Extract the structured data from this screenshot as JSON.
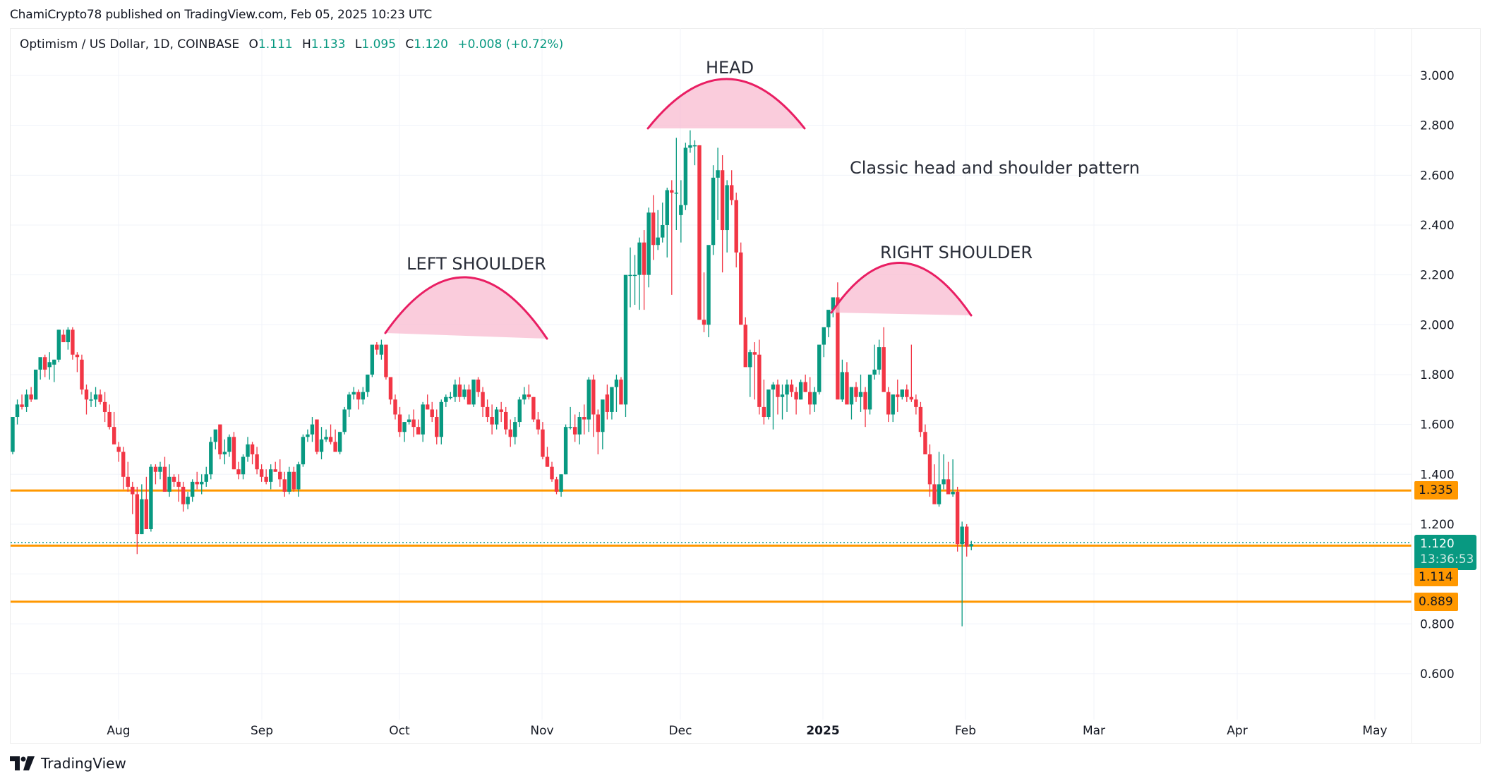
{
  "publish_line": "ChamiCrypto78 published on TradingView.com, Feb 05, 2025 10:23 UTC",
  "legend": {
    "symbol": "Optimism / US Dollar, 1D, COINBASE",
    "open_label": "O",
    "open": "1.111",
    "high_label": "H",
    "high": "1.133",
    "low_label": "L",
    "low": "1.095",
    "close_label": "C",
    "close": "1.120",
    "change": "+0.008 (+0.72%)"
  },
  "price_axis": {
    "ticks": [
      "3.000",
      "2.800",
      "2.600",
      "2.400",
      "2.200",
      "2.000",
      "1.800",
      "1.600",
      "1.400",
      "1.200",
      "0.800",
      "0.600"
    ]
  },
  "time_axis": {
    "ticks": [
      "Aug",
      "Sep",
      "Oct",
      "Nov",
      "Dec",
      "2025",
      "Feb",
      "Mar",
      "Apr",
      "May"
    ]
  },
  "price_tags": {
    "level_1": "1.335",
    "last_price": "1.120",
    "countdown": "13:36:53",
    "level_2": "1.114",
    "level_3": "0.889"
  },
  "annotations": {
    "head": "HEAD",
    "left_shoulder": "LEFT SHOULDER",
    "right_shoulder": "RIGHT SHOULDER",
    "note": "Classic head and shoulder pattern"
  },
  "footer": {
    "brand": "TradingView"
  },
  "colors": {
    "up": "#089981",
    "down": "#F23645",
    "level_line": "#FF9800",
    "pattern_stroke": "#E91E63",
    "pattern_fill": "#F8BBD0",
    "grid": "#F0F3FA"
  },
  "chart_data": {
    "type": "candlestick",
    "title": "Optimism / US Dollar, 1D, COINBASE",
    "xlabel": "",
    "ylabel": "",
    "ylim": [
      0.5,
      3.1
    ],
    "grid": true,
    "x_ticks": [
      "Aug",
      "Sep",
      "Oct",
      "Nov",
      "Dec",
      "2025",
      "Feb",
      "Mar",
      "Apr",
      "May"
    ],
    "y_ticks": [
      0.6,
      0.8,
      1.0,
      1.2,
      1.4,
      1.6,
      1.8,
      2.0,
      2.2,
      2.4,
      2.6,
      2.8,
      3.0
    ],
    "horizontal_levels": [
      1.335,
      1.114,
      0.889
    ],
    "last_price": 1.12,
    "ohlc_note": "approximate daily OHLC read from chart, Jul 2024 to Feb 5 2025",
    "ohlc": [
      [
        1.49,
        1.63,
        1.48,
        1.63
      ],
      [
        1.63,
        1.7,
        1.6,
        1.68
      ],
      [
        1.68,
        1.72,
        1.66,
        1.67
      ],
      [
        1.67,
        1.74,
        1.65,
        1.72
      ],
      [
        1.72,
        1.75,
        1.69,
        1.7
      ],
      [
        1.7,
        1.8,
        1.7,
        1.82
      ],
      [
        1.82,
        1.85,
        1.78,
        1.87
      ],
      [
        1.87,
        1.88,
        1.79,
        1.82
      ],
      [
        1.83,
        1.89,
        1.78,
        1.85
      ],
      [
        1.84,
        1.86,
        1.77,
        1.86
      ],
      [
        1.86,
        1.98,
        1.85,
        1.98
      ],
      [
        1.96,
        1.98,
        1.93,
        1.93
      ],
      [
        1.93,
        1.99,
        1.9,
        1.98
      ],
      [
        1.98,
        1.99,
        1.86,
        1.88
      ],
      [
        1.88,
        1.89,
        1.81,
        1.87
      ],
      [
        1.86,
        1.88,
        1.72,
        1.74
      ],
      [
        1.74,
        1.76,
        1.64,
        1.7
      ],
      [
        1.7,
        1.73,
        1.67,
        1.7
      ],
      [
        1.7,
        1.75,
        1.67,
        1.72
      ],
      [
        1.72,
        1.74,
        1.68,
        1.69
      ],
      [
        1.69,
        1.73,
        1.61,
        1.65
      ],
      [
        1.65,
        1.68,
        1.58,
        1.59
      ],
      [
        1.59,
        1.65,
        1.55,
        1.52
      ],
      [
        1.51,
        1.53,
        1.45,
        1.49
      ],
      [
        1.49,
        1.51,
        1.34,
        1.39
      ],
      [
        1.39,
        1.45,
        1.33,
        1.35
      ],
      [
        1.35,
        1.37,
        1.24,
        1.32
      ],
      [
        1.32,
        1.35,
        1.08,
        1.16
      ],
      [
        1.16,
        1.36,
        1.16,
        1.3
      ],
      [
        1.3,
        1.39,
        1.19,
        1.18
      ],
      [
        1.18,
        1.44,
        1.17,
        1.43
      ],
      [
        1.43,
        1.44,
        1.36,
        1.41
      ],
      [
        1.41,
        1.45,
        1.38,
        1.43
      ],
      [
        1.43,
        1.47,
        1.33,
        1.33
      ],
      [
        1.33,
        1.44,
        1.31,
        1.39
      ],
      [
        1.39,
        1.4,
        1.35,
        1.37
      ],
      [
        1.37,
        1.4,
        1.29,
        1.35
      ],
      [
        1.35,
        1.37,
        1.25,
        1.28
      ],
      [
        1.28,
        1.33,
        1.26,
        1.31
      ],
      [
        1.31,
        1.38,
        1.29,
        1.37
      ],
      [
        1.37,
        1.41,
        1.34,
        1.36
      ],
      [
        1.36,
        1.4,
        1.32,
        1.37
      ],
      [
        1.37,
        1.43,
        1.35,
        1.4
      ],
      [
        1.4,
        1.55,
        1.38,
        1.53
      ],
      [
        1.53,
        1.57,
        1.5,
        1.58
      ],
      [
        1.6,
        1.6,
        1.46,
        1.48
      ],
      [
        1.48,
        1.54,
        1.44,
        1.49
      ],
      [
        1.49,
        1.56,
        1.47,
        1.55
      ],
      [
        1.55,
        1.57,
        1.42,
        1.42
      ],
      [
        1.42,
        1.45,
        1.38,
        1.4
      ],
      [
        1.4,
        1.48,
        1.38,
        1.47
      ],
      [
        1.47,
        1.55,
        1.45,
        1.52
      ],
      [
        1.52,
        1.53,
        1.44,
        1.48
      ],
      [
        1.48,
        1.51,
        1.4,
        1.42
      ],
      [
        1.42,
        1.44,
        1.37,
        1.39
      ],
      [
        1.39,
        1.42,
        1.36,
        1.37
      ],
      [
        1.37,
        1.44,
        1.34,
        1.42
      ],
      [
        1.42,
        1.45,
        1.41,
        1.41
      ],
      [
        1.41,
        1.46,
        1.35,
        1.38
      ],
      [
        1.38,
        1.41,
        1.31,
        1.33
      ],
      [
        1.33,
        1.43,
        1.32,
        1.41
      ],
      [
        1.41,
        1.43,
        1.33,
        1.34
      ],
      [
        1.34,
        1.45,
        1.31,
        1.44
      ],
      [
        1.44,
        1.56,
        1.43,
        1.55
      ],
      [
        1.55,
        1.58,
        1.53,
        1.56
      ],
      [
        1.56,
        1.63,
        1.53,
        1.6
      ],
      [
        1.62,
        1.62,
        1.48,
        1.49
      ],
      [
        1.49,
        1.59,
        1.46,
        1.54
      ],
      [
        1.54,
        1.58,
        1.53,
        1.55
      ],
      [
        1.55,
        1.6,
        1.52,
        1.53
      ],
      [
        1.53,
        1.58,
        1.49,
        1.49
      ],
      [
        1.49,
        1.57,
        1.48,
        1.57
      ],
      [
        1.57,
        1.67,
        1.56,
        1.66
      ],
      [
        1.66,
        1.73,
        1.63,
        1.72
      ],
      [
        1.72,
        1.75,
        1.7,
        1.73
      ],
      [
        1.73,
        1.74,
        1.66,
        1.7
      ],
      [
        1.7,
        1.75,
        1.68,
        1.73
      ],
      [
        1.73,
        1.8,
        1.71,
        1.8
      ],
      [
        1.8,
        1.88,
        1.79,
        1.92
      ],
      [
        1.92,
        1.93,
        1.88,
        1.9
      ],
      [
        1.88,
        1.94,
        1.86,
        1.92
      ],
      [
        1.92,
        1.92,
        1.78,
        1.79
      ],
      [
        1.79,
        1.77,
        1.68,
        1.7
      ],
      [
        1.7,
        1.72,
        1.62,
        1.64
      ],
      [
        1.64,
        1.67,
        1.55,
        1.57
      ],
      [
        1.57,
        1.61,
        1.53,
        1.61
      ],
      [
        1.61,
        1.64,
        1.6,
        1.62
      ],
      [
        1.62,
        1.66,
        1.55,
        1.59
      ],
      [
        1.59,
        1.62,
        1.58,
        1.56
      ],
      [
        1.56,
        1.69,
        1.53,
        1.68
      ],
      [
        1.68,
        1.72,
        1.66,
        1.66
      ],
      [
        1.66,
        1.69,
        1.61,
        1.63
      ],
      [
        1.63,
        1.66,
        1.52,
        1.55
      ],
      [
        1.55,
        1.7,
        1.52,
        1.69
      ],
      [
        1.69,
        1.72,
        1.67,
        1.71
      ],
      [
        1.71,
        1.73,
        1.7,
        1.71
      ],
      [
        1.71,
        1.78,
        1.69,
        1.76
      ],
      [
        1.76,
        1.79,
        1.69,
        1.71
      ],
      [
        1.71,
        1.76,
        1.7,
        1.74
      ],
      [
        1.74,
        1.76,
        1.68,
        1.68
      ],
      [
        1.68,
        1.78,
        1.67,
        1.78
      ],
      [
        1.78,
        1.79,
        1.71,
        1.73
      ],
      [
        1.73,
        1.75,
        1.63,
        1.67
      ],
      [
        1.67,
        1.7,
        1.61,
        1.63
      ],
      [
        1.63,
        1.68,
        1.56,
        1.6
      ],
      [
        1.6,
        1.67,
        1.58,
        1.66
      ],
      [
        1.66,
        1.69,
        1.61,
        1.65
      ],
      [
        1.65,
        1.67,
        1.56,
        1.58
      ],
      [
        1.58,
        1.62,
        1.51,
        1.55
      ],
      [
        1.55,
        1.63,
        1.52,
        1.61
      ],
      [
        1.61,
        1.71,
        1.59,
        1.7
      ],
      [
        1.7,
        1.75,
        1.68,
        1.72
      ],
      [
        1.72,
        1.76,
        1.7,
        1.71
      ],
      [
        1.71,
        1.71,
        1.61,
        1.62
      ],
      [
        1.62,
        1.65,
        1.56,
        1.58
      ],
      [
        1.58,
        1.61,
        1.46,
        1.47
      ],
      [
        1.47,
        1.51,
        1.43,
        1.43
      ],
      [
        1.43,
        1.45,
        1.37,
        1.38
      ],
      [
        1.38,
        1.39,
        1.32,
        1.33
      ],
      [
        1.33,
        1.4,
        1.31,
        1.4
      ],
      [
        1.4,
        1.6,
        1.4,
        1.59
      ],
      [
        1.59,
        1.67,
        1.58,
        1.59
      ],
      [
        1.59,
        1.64,
        1.53,
        1.56
      ],
      [
        1.56,
        1.65,
        1.52,
        1.63
      ],
      [
        1.63,
        1.68,
        1.56,
        1.62
      ],
      [
        1.62,
        1.79,
        1.57,
        1.78
      ],
      [
        1.78,
        1.8,
        1.55,
        1.64
      ],
      [
        1.64,
        1.66,
        1.48,
        1.57
      ],
      [
        1.57,
        1.67,
        1.5,
        1.7
      ],
      [
        1.72,
        1.76,
        1.62,
        1.65
      ],
      [
        1.65,
        1.74,
        1.62,
        1.75
      ],
      [
        1.75,
        1.8,
        1.65,
        1.78
      ],
      [
        1.78,
        1.79,
        1.71,
        1.68
      ],
      [
        1.68,
        1.8,
        1.63,
        2.2
      ],
      [
        2.2,
        2.31,
        2.07,
        2.2
      ],
      [
        2.2,
        2.28,
        2.08,
        2.2
      ],
      [
        2.2,
        2.35,
        2.06,
        2.33
      ],
      [
        2.33,
        2.38,
        2.06,
        2.2
      ],
      [
        2.2,
        2.47,
        2.15,
        2.45
      ],
      [
        2.45,
        2.52,
        2.26,
        2.32
      ],
      [
        2.32,
        2.46,
        2.3,
        2.35
      ],
      [
        2.35,
        2.49,
        2.33,
        2.4
      ],
      [
        2.4,
        2.55,
        2.27,
        2.54
      ],
      [
        2.54,
        2.58,
        2.12,
        2.53
      ],
      [
        2.53,
        2.75,
        2.38,
        2.53
      ],
      [
        2.44,
        2.58,
        2.33,
        2.48
      ],
      [
        2.48,
        2.73,
        2.46,
        2.71
      ],
      [
        2.71,
        2.78,
        2.69,
        2.72
      ],
      [
        2.72,
        2.74,
        2.64,
        2.72
      ],
      [
        2.72,
        2.72,
        2.02,
        2.02
      ],
      [
        2.02,
        2.21,
        1.97,
        2.0
      ],
      [
        2.0,
        2.24,
        1.95,
        2.32
      ],
      [
        2.32,
        2.64,
        2.28,
        2.59
      ],
      [
        2.59,
        2.71,
        2.42,
        2.62
      ],
      [
        2.62,
        2.68,
        2.21,
        2.38
      ],
      [
        2.38,
        2.58,
        2.29,
        2.56
      ],
      [
        2.56,
        2.62,
        2.48,
        2.5
      ],
      [
        2.5,
        2.53,
        2.23,
        2.29
      ],
      [
        2.29,
        2.33,
        2.0,
        2.0
      ],
      [
        2.0,
        2.03,
        1.93,
        1.83
      ],
      [
        1.83,
        1.9,
        1.71,
        1.89
      ],
      [
        1.89,
        1.93,
        1.7,
        1.88
      ],
      [
        1.88,
        1.94,
        1.64,
        1.67
      ],
      [
        1.67,
        1.78,
        1.6,
        1.63
      ],
      [
        1.63,
        1.71,
        1.62,
        1.74
      ],
      [
        1.74,
        1.77,
        1.58,
        1.76
      ],
      [
        1.76,
        1.78,
        1.64,
        1.71
      ],
      [
        1.71,
        1.76,
        1.62,
        1.72
      ],
      [
        1.72,
        1.78,
        1.65,
        1.76
      ],
      [
        1.76,
        1.78,
        1.71,
        1.73
      ],
      [
        1.73,
        1.75,
        1.64,
        1.7
      ],
      [
        1.7,
        1.78,
        1.7,
        1.77
      ],
      [
        1.77,
        1.8,
        1.73,
        1.73
      ],
      [
        1.73,
        1.79,
        1.64,
        1.68
      ],
      [
        1.68,
        1.75,
        1.65,
        1.73
      ],
      [
        1.73,
        1.84,
        1.72,
        1.92
      ],
      [
        1.92,
        1.97,
        1.87,
        1.99
      ],
      [
        1.99,
        2.02,
        1.95,
        2.06
      ],
      [
        2.06,
        2.1,
        2.03,
        2.11
      ],
      [
        2.11,
        2.17,
        2.09,
        1.7
      ],
      [
        1.7,
        1.86,
        1.69,
        1.81
      ],
      [
        1.81,
        1.85,
        1.72,
        1.68
      ],
      [
        1.68,
        1.72,
        1.62,
        1.75
      ],
      [
        1.75,
        1.77,
        1.69,
        1.71
      ],
      [
        1.71,
        1.8,
        1.65,
        1.73
      ],
      [
        1.73,
        1.75,
        1.59,
        1.66
      ],
      [
        1.66,
        1.79,
        1.64,
        1.8
      ],
      [
        1.8,
        1.92,
        1.78,
        1.82
      ],
      [
        1.82,
        1.94,
        1.8,
        1.91
      ],
      [
        1.91,
        1.99,
        1.79,
        1.73
      ],
      [
        1.73,
        1.75,
        1.61,
        1.64
      ],
      [
        1.64,
        1.72,
        1.61,
        1.72
      ],
      [
        1.72,
        1.78,
        1.65,
        1.71
      ],
      [
        1.71,
        1.74,
        1.7,
        1.74
      ],
      [
        1.74,
        1.76,
        1.69,
        1.71
      ],
      [
        1.71,
        1.92,
        1.69,
        1.7
      ],
      [
        1.7,
        1.72,
        1.64,
        1.67
      ],
      [
        1.67,
        1.69,
        1.55,
        1.57
      ],
      [
        1.57,
        1.6,
        1.5,
        1.48
      ],
      [
        1.48,
        1.52,
        1.31,
        1.36
      ],
      [
        1.36,
        1.44,
        1.33,
        1.28
      ],
      [
        1.28,
        1.49,
        1.27,
        1.36
      ],
      [
        1.36,
        1.48,
        1.34,
        1.38
      ],
      [
        1.38,
        1.45,
        1.33,
        1.32
      ],
      [
        1.32,
        1.46,
        1.31,
        1.33
      ],
      [
        1.33,
        1.35,
        1.09,
        1.12
      ],
      [
        1.12,
        1.21,
        0.79,
        1.19
      ],
      [
        1.19,
        1.2,
        1.07,
        1.11
      ],
      [
        1.111,
        1.133,
        1.095,
        1.12
      ]
    ]
  }
}
